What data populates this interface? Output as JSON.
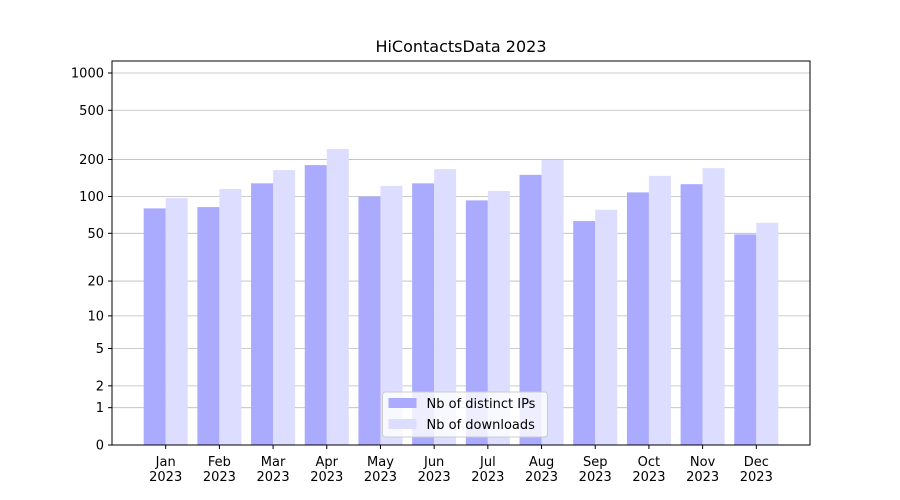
{
  "chart_data": {
    "type": "bar",
    "title": "HiContactsData 2023",
    "categories": [
      "Jan\n2023",
      "Feb\n2023",
      "Mar\n2023",
      "Apr\n2023",
      "May\n2023",
      "Jun\n2023",
      "Jul\n2023",
      "Aug\n2023",
      "Sep\n2023",
      "Oct\n2023",
      "Nov\n2023",
      "Dec\n2023"
    ],
    "series": [
      {
        "name": "Nb of distinct IPs",
        "color": "#aaaaff",
        "values": [
          80,
          82,
          128,
          180,
          100,
          128,
          93,
          150,
          63,
          108,
          126,
          49
        ]
      },
      {
        "name": "Nb of downloads",
        "color": "#ddddff",
        "values": [
          97,
          115,
          164,
          243,
          122,
          167,
          111,
          198,
          78,
          147,
          170,
          61
        ]
      }
    ],
    "yscale": "log1p",
    "ylim": [
      0,
      1250
    ],
    "yticks": [
      0,
      1,
      2,
      5,
      10,
      20,
      50,
      100,
      200,
      500,
      1000
    ],
    "grid": true,
    "legend": "lower center"
  }
}
